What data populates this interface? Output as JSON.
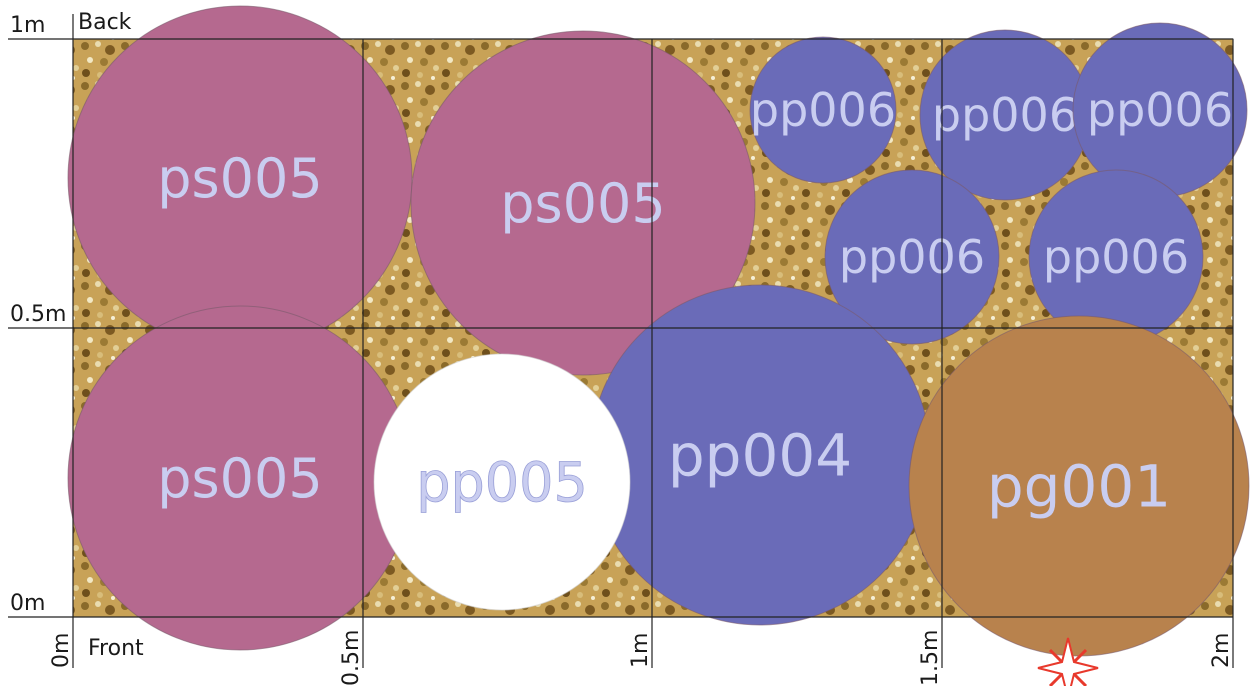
{
  "bed": {
    "back_label": "Back",
    "front_label": "Front",
    "y_axis_labels": [
      "1m",
      "0.5m",
      "0m"
    ],
    "x_axis_labels": [
      "0m",
      "0.5m",
      "1m",
      "1.5m",
      "2m"
    ]
  },
  "colors": {
    "ps005": "#b5698f",
    "pp006": "#6a6bb8",
    "pp004": "#6a6bb8",
    "pp005": "#ffffff",
    "pg001": "#b8824d",
    "label_text": "#c9cdf0",
    "gravel": "#c8a257",
    "compass": "#e8392c"
  },
  "plants": [
    {
      "code": "ps005"
    },
    {
      "code": "ps005"
    },
    {
      "code": "ps005"
    },
    {
      "code": "pp006"
    },
    {
      "code": "pp006"
    },
    {
      "code": "pp006"
    },
    {
      "code": "pp006"
    },
    {
      "code": "pp006"
    },
    {
      "code": "pp004"
    },
    {
      "code": "pp005"
    },
    {
      "code": "pg001"
    }
  ],
  "icons": {
    "compass": "compass-star-icon"
  }
}
